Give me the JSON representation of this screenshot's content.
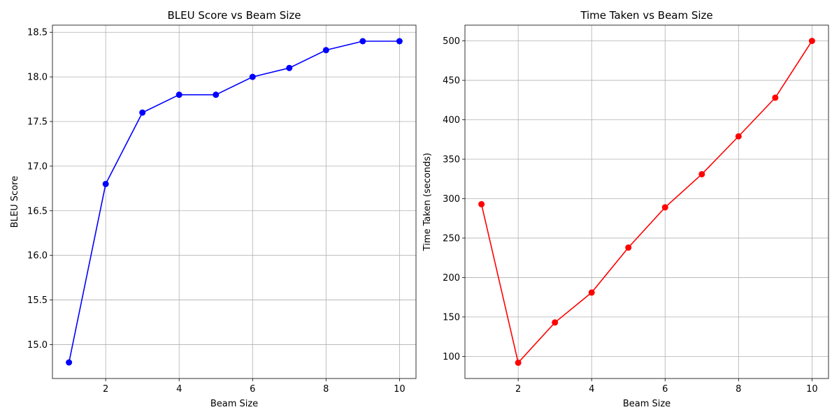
{
  "chart_data": [
    {
      "type": "line",
      "title": "BLEU Score vs Beam Size",
      "xlabel": "Beam Size",
      "ylabel": "BLEU Score",
      "x": [
        1,
        2,
        3,
        4,
        5,
        6,
        7,
        8,
        9,
        10
      ],
      "series": [
        {
          "values": [
            14.8,
            16.8,
            17.6,
            17.8,
            17.8,
            18.0,
            18.1,
            18.3,
            18.4,
            18.4
          ],
          "color": "#0000ff",
          "marker": "circle"
        }
      ],
      "xlim": [
        0.55,
        10.45
      ],
      "ylim": [
        14.62,
        18.58
      ],
      "xticks": [
        2,
        4,
        6,
        8,
        10
      ],
      "xtick_labels": [
        "2",
        "4",
        "6",
        "8",
        "10"
      ],
      "yticks": [
        15.0,
        15.5,
        16.0,
        16.5,
        17.0,
        17.5,
        18.0,
        18.5
      ],
      "ytick_labels": [
        "15.0",
        "15.5",
        "16.0",
        "16.5",
        "17.0",
        "17.5",
        "18.0",
        "18.5"
      ],
      "grid": true,
      "legend": "none"
    },
    {
      "type": "line",
      "title": "Time Taken vs Beam Size",
      "xlabel": "Beam Size",
      "ylabel": "Time Taken (seconds)",
      "x": [
        1,
        2,
        3,
        4,
        5,
        6,
        7,
        8,
        9,
        10
      ],
      "series": [
        {
          "values": [
            293,
            92,
            143,
            181,
            238,
            289,
            331,
            379,
            428,
            500
          ],
          "color": "#ff0000",
          "marker": "circle"
        }
      ],
      "xlim": [
        0.55,
        10.45
      ],
      "ylim": [
        72,
        520
      ],
      "xticks": [
        2,
        4,
        6,
        8,
        10
      ],
      "xtick_labels": [
        "2",
        "4",
        "6",
        "8",
        "10"
      ],
      "yticks": [
        100,
        150,
        200,
        250,
        300,
        350,
        400,
        450,
        500
      ],
      "ytick_labels": [
        "100",
        "150",
        "200",
        "250",
        "300",
        "350",
        "400",
        "450",
        "500"
      ],
      "grid": true,
      "legend": "none"
    }
  ]
}
